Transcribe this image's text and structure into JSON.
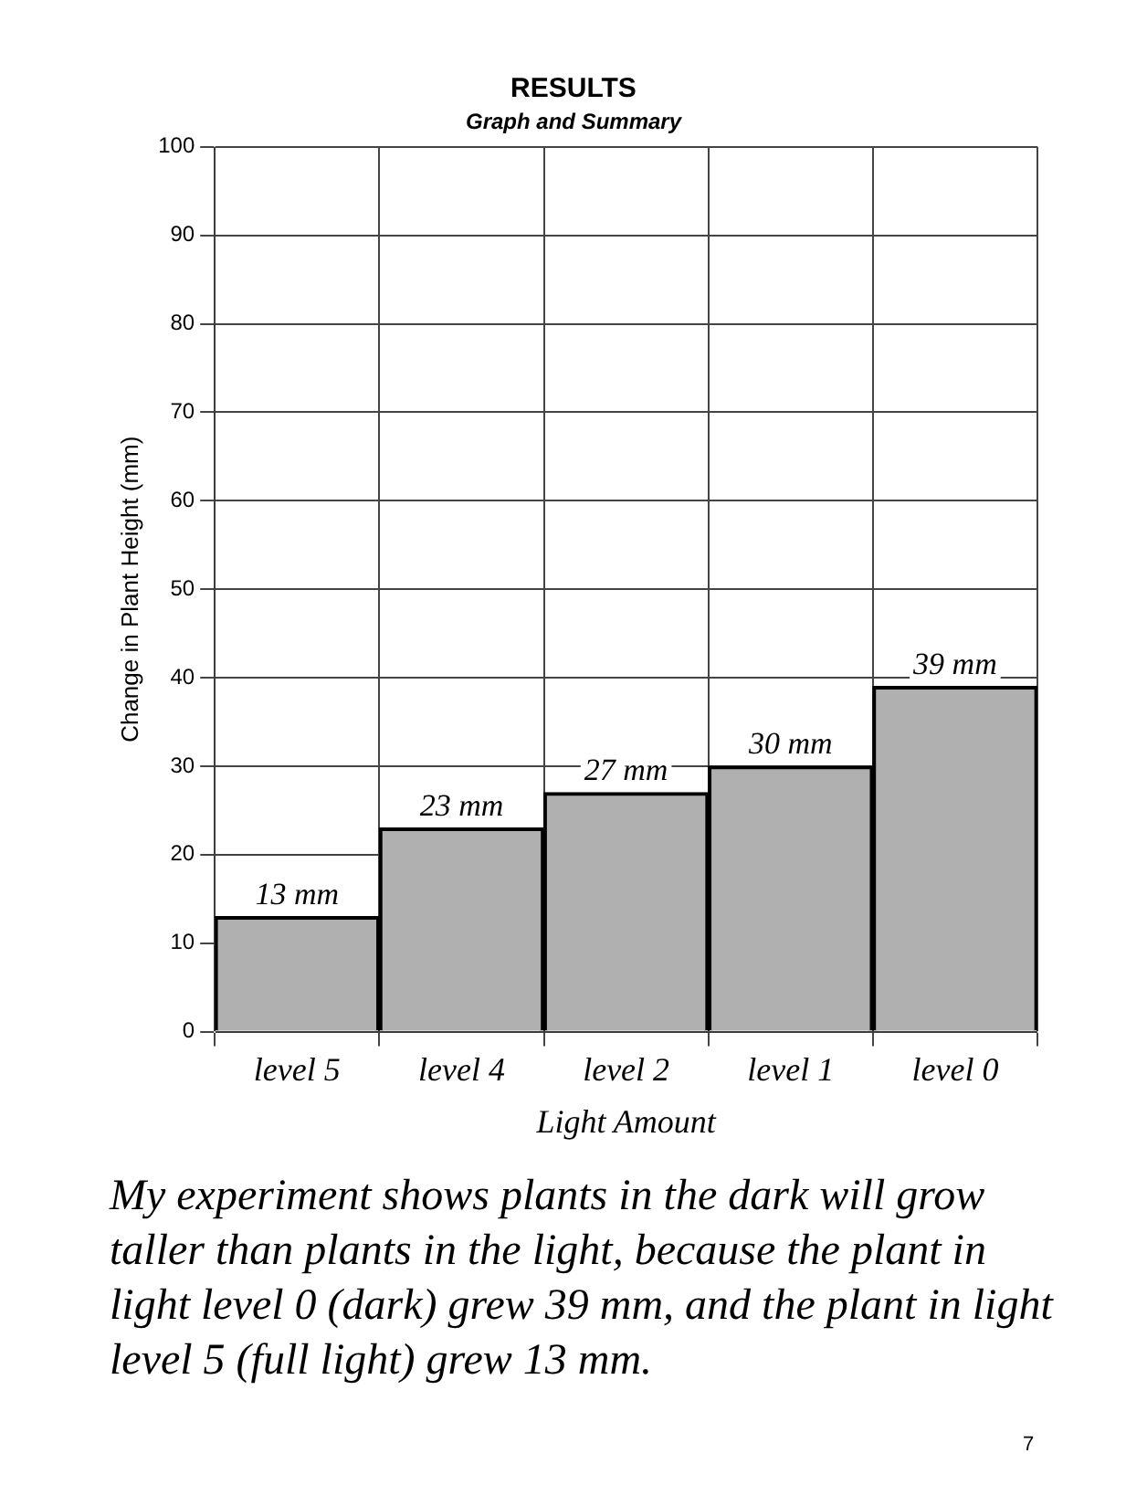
{
  "chart_data": {
    "type": "bar",
    "title": "RESULTS",
    "subtitle": "Graph and Summary",
    "xlabel": "Light Amount",
    "ylabel": "Change in Plant Height (mm)",
    "categories": [
      "level 5",
      "level 4",
      "level 2",
      "level 1",
      "level 0"
    ],
    "values": [
      13,
      23,
      27,
      30,
      39
    ],
    "value_labels": [
      "13 mm",
      "23 mm",
      "27 mm",
      "30 mm",
      "39 mm"
    ],
    "color": "#b0b0b0",
    "ylim": [
      0,
      100
    ],
    "yticks": [
      0,
      10,
      20,
      30,
      40,
      50,
      60,
      70,
      80,
      90,
      100
    ],
    "grid": true,
    "legend": false,
    "annotations": [
      "My experiment shows plants in the dark will grow taller than plants in the light, because the plant in light level 0 (dark) grew 39 mm, and the plant in light level 5 (full light) grew 13 mm.",
      "7"
    ]
  }
}
